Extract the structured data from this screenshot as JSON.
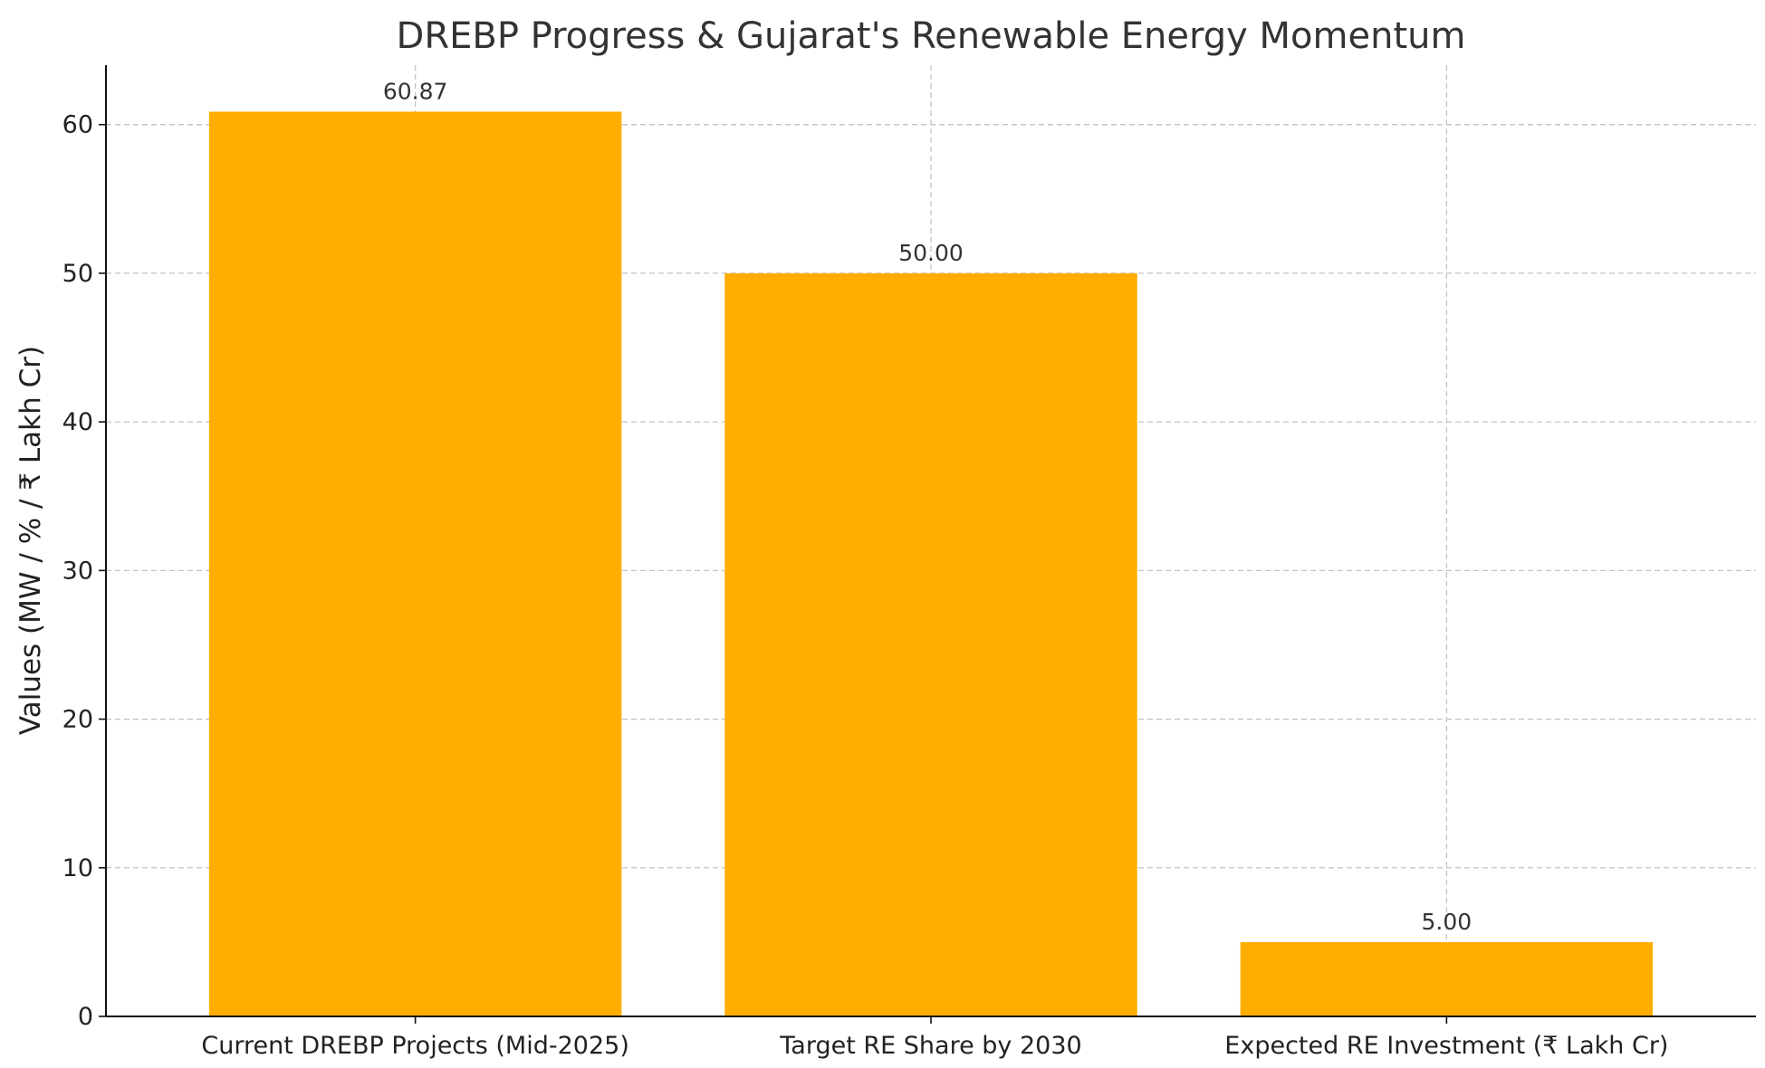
{
  "chart_data": {
    "type": "bar",
    "title": "DREBP Progress & Gujarat's Renewable Energy Momentum",
    "xlabel": "",
    "ylabel": "Values (MW / % / ₹ Lakh Cr)",
    "categories": [
      "Current DREBP Projects (Mid-2025)",
      "Target RE Share by 2030",
      "Expected RE Investment (₹ Lakh Cr)"
    ],
    "values": [
      60.87,
      50.0,
      5.0
    ],
    "data_labels": [
      "60.87",
      "50.00",
      "5.00"
    ],
    "ylim": [
      0,
      64
    ],
    "yticks": [
      0,
      10,
      20,
      30,
      40,
      50,
      60
    ],
    "ytick_labels": [
      "0",
      "10",
      "20",
      "30",
      "40",
      "50",
      "60"
    ],
    "grid": true,
    "bar_color": "#FFAE00"
  }
}
